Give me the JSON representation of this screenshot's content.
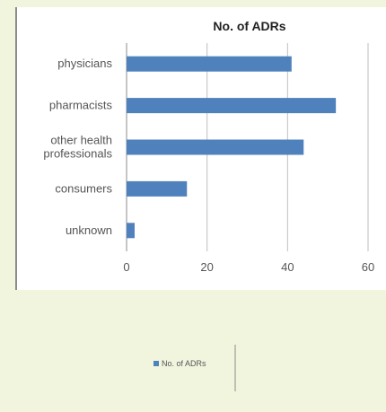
{
  "colors": {
    "background": "#f1f5de",
    "plot_background": "#ffffff",
    "bar": "#4f81bd",
    "gridline": "#bfbfbf",
    "axis": "#8c8c8c"
  },
  "chart_data": {
    "type": "bar",
    "orientation": "horizontal",
    "title": "No. of ADRs",
    "categories": [
      [
        "physicians"
      ],
      [
        "pharmacists"
      ],
      [
        "other health",
        "professionals"
      ],
      [
        "consumers"
      ],
      [
        "unknown"
      ]
    ],
    "series": [
      {
        "name": "No. of ADRs",
        "values": [
          41,
          52,
          44,
          15,
          2
        ]
      }
    ],
    "xlim": [
      0,
      60
    ],
    "xticks": [
      "0",
      "20",
      "40",
      "60"
    ],
    "grid": true,
    "legend": "bottom"
  }
}
